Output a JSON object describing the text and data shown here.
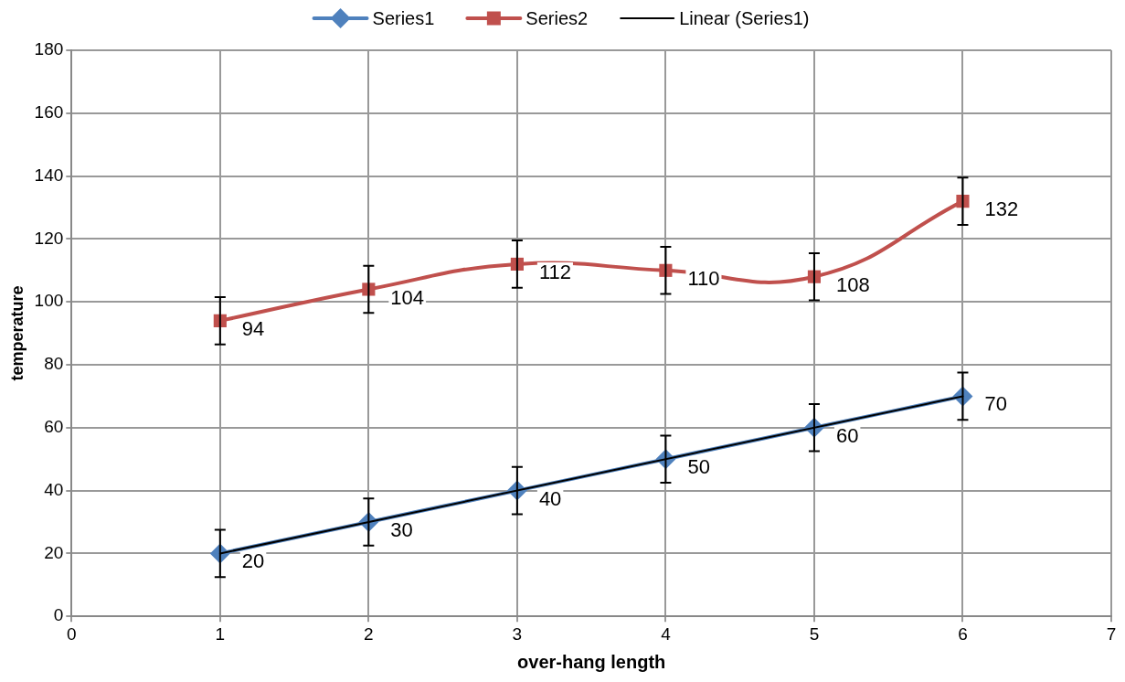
{
  "chart_data": {
    "type": "line",
    "xlabel": "over-hang length",
    "ylabel": "temperature",
    "xlim": [
      0,
      7
    ],
    "xticks": [
      0,
      1,
      2,
      3,
      4,
      5,
      6,
      7
    ],
    "ylim": [
      0,
      180
    ],
    "yticks": [
      0,
      20,
      40,
      60,
      80,
      100,
      120,
      140,
      160,
      180
    ],
    "grid": true,
    "legend": "top",
    "series": [
      {
        "name": "Series1",
        "color": "#4f81bd",
        "marker": "diamond",
        "x": [
          1,
          2,
          3,
          4,
          5,
          6
        ],
        "values": [
          20,
          30,
          40,
          50,
          60,
          70
        ],
        "errors": [
          7.5,
          7.5,
          7.5,
          7.5,
          7.5,
          7.5
        ],
        "value_labels": [
          "20",
          "30",
          "40",
          "50",
          "60",
          "70"
        ]
      },
      {
        "name": "Series2",
        "color": "#c0504d",
        "marker": "square",
        "x": [
          1,
          2,
          3,
          4,
          5,
          6
        ],
        "values": [
          94,
          104,
          112,
          110,
          108,
          132
        ],
        "errors": [
          7.5,
          7.5,
          7.5,
          7.5,
          7.5,
          7.5
        ],
        "value_labels": [
          "94",
          "104",
          "112",
          "110",
          "108",
          "132"
        ]
      },
      {
        "name": "Linear (Series1)",
        "type": "line",
        "color": "#000000",
        "marker": "none",
        "x": [
          1,
          6
        ],
        "values": [
          20,
          70
        ]
      }
    ]
  }
}
